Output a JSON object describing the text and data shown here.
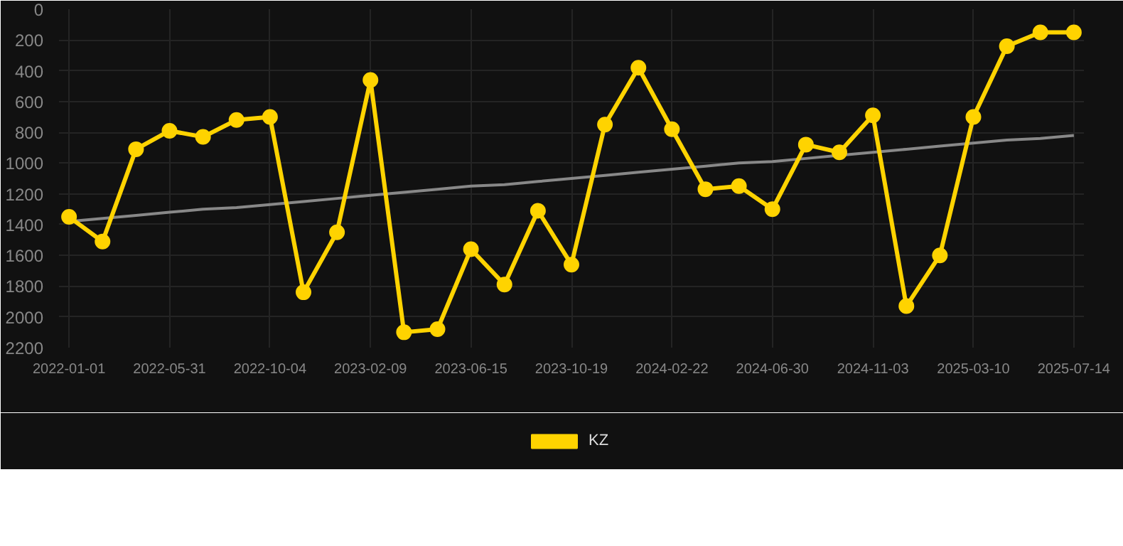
{
  "chart_data": {
    "type": "line",
    "categories": [
      "2022-01-01",
      null,
      null,
      "2022-05-31",
      null,
      null,
      "2022-10-04",
      null,
      null,
      "2023-02-09",
      null,
      null,
      "2023-06-15",
      null,
      null,
      "2023-10-19",
      null,
      null,
      "2024-02-22",
      null,
      null,
      "2024-06-30",
      null,
      null,
      "2024-11-03",
      null,
      null,
      "2025-03-10",
      null,
      null,
      "2025-07-14"
    ],
    "series": [
      {
        "name": "KZ",
        "color": "#ffd300",
        "marker": "circle",
        "values": [
          1350,
          1510,
          910,
          790,
          830,
          720,
          700,
          1840,
          1450,
          460,
          2100,
          2080,
          1560,
          1790,
          1310,
          1660,
          750,
          380,
          780,
          1170,
          1150,
          1300,
          880,
          930,
          690,
          1930,
          1600,
          700,
          240,
          150,
          150
        ]
      },
      {
        "color": "#888888",
        "marker": "none",
        "values": [
          1380,
          1360,
          1340,
          1320,
          1300,
          1290,
          1270,
          1250,
          1230,
          1210,
          1190,
          1170,
          1150,
          1140,
          1120,
          1100,
          1080,
          1060,
          1040,
          1020,
          1000,
          990,
          970,
          950,
          930,
          910,
          890,
          870,
          850,
          840,
          820
        ]
      }
    ],
    "ylim": [
      2200,
      0
    ],
    "yticks": [
      0,
      200,
      400,
      600,
      800,
      1000,
      1200,
      1400,
      1600,
      1800,
      2000,
      2200
    ],
    "grid": true,
    "legend": "bottom"
  }
}
